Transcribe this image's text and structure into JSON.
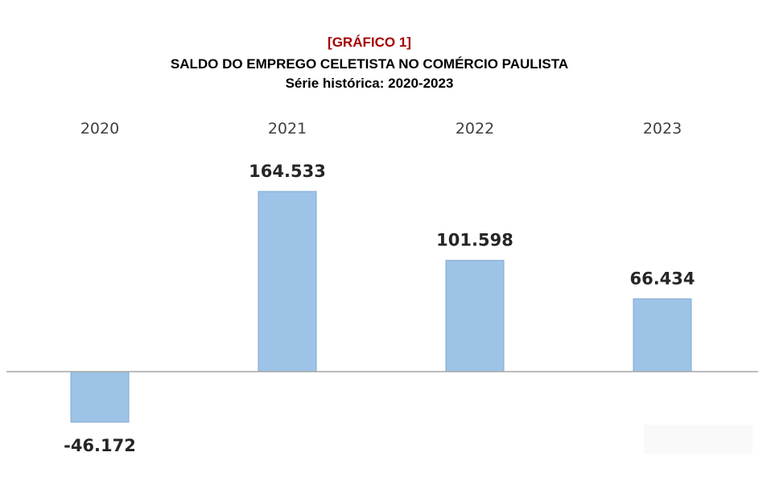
{
  "header": {
    "tag": "[GRÁFICO 1]",
    "title": "SALDO DO EMPREGO CELETISTA NO COMÉRCIO PAULISTA",
    "subtitle": "Série histórica: 2020-2023"
  },
  "colors": {
    "tag": "#a50000",
    "bar_fill": "#9dc3e6",
    "bar_stroke": "#7fa9d3",
    "baseline": "#a6a6a6",
    "category_text": "#404040",
    "value_text": "#262626"
  },
  "chart_data": {
    "type": "bar",
    "title": "SALDO DO EMPREGO CELETISTA NO COMÉRCIO PAULISTA",
    "subtitle": "Série histórica: 2020-2023",
    "categories": [
      "2020",
      "2021",
      "2022",
      "2023"
    ],
    "values": [
      -46172,
      164533,
      101598,
      66434
    ],
    "value_labels": [
      "-46.172",
      "164.533",
      "101.598",
      "66.434"
    ],
    "xlabel": "",
    "ylabel": "",
    "category_axis_position": "top",
    "grid": false,
    "legend": "none"
  }
}
